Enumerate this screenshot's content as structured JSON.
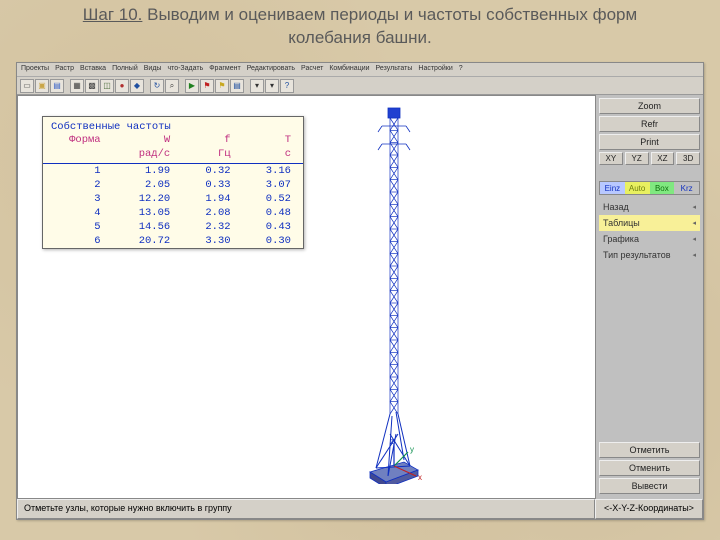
{
  "heading": {
    "step": "Шаг 10.",
    "text": " Выводим и оцениваем периоды и частоты собственных форм колебания башни."
  },
  "menubar": [
    "Проекты",
    "Растр",
    "Вставка",
    "Полный",
    "Виды",
    "что-Задать",
    "Фрагмент",
    "Редактировать",
    "Расчет",
    "Комбинации",
    "Результаты",
    "Настройки",
    "?"
  ],
  "toolbar_icons": [
    {
      "name": "new-icon",
      "glyph": "▭",
      "color": "#555"
    },
    {
      "name": "open-icon",
      "glyph": "▣",
      "color": "#caa648"
    },
    {
      "name": "save-icon",
      "glyph": "▤",
      "color": "#3a64c8"
    },
    {
      "name": "sep"
    },
    {
      "name": "grid-icon",
      "glyph": "▦",
      "color": "#444"
    },
    {
      "name": "mesh-icon",
      "glyph": "▩",
      "color": "#444"
    },
    {
      "name": "view3d-icon",
      "glyph": "◫",
      "color": "#507040"
    },
    {
      "name": "select-node-icon",
      "glyph": "●",
      "color": "#b03030"
    },
    {
      "name": "select-elem-icon",
      "glyph": "◆",
      "color": "#2050a0"
    },
    {
      "name": "sep"
    },
    {
      "name": "refresh-icon",
      "glyph": "↻",
      "color": "#2050a0"
    },
    {
      "name": "zoom-icon",
      "glyph": "⌕",
      "color": "#333"
    },
    {
      "name": "sep"
    },
    {
      "name": "run-icon",
      "glyph": "▶",
      "color": "#208020"
    },
    {
      "name": "flag-red-icon",
      "glyph": "⚑",
      "color": "#c02020"
    },
    {
      "name": "flag-yellow-icon",
      "glyph": "⚑",
      "color": "#c8a820"
    },
    {
      "name": "results-icon",
      "glyph": "▤",
      "color": "#2050a0"
    },
    {
      "name": "sep"
    },
    {
      "name": "dropdown1",
      "glyph": "▾",
      "color": "#333"
    },
    {
      "name": "dropdown2",
      "glyph": "▾",
      "color": "#333"
    },
    {
      "name": "help-icon",
      "glyph": "?",
      "color": "#2050a0"
    }
  ],
  "side": {
    "zoom": "Zoom",
    "refr": "Refr",
    "print": "Print",
    "views": [
      "XY",
      "YZ",
      "XZ",
      "3D"
    ],
    "colorband": [
      {
        "label": "Einz",
        "bg": "#b8c8ff",
        "fg": "#1030c0"
      },
      {
        "label": "Auto",
        "bg": "#e8f060",
        "fg": "#708010"
      },
      {
        "label": "Box",
        "bg": "#80e880",
        "fg": "#107010"
      },
      {
        "label": "Krz",
        "bg": "#c0c0c0",
        "fg": "#1030c0"
      }
    ],
    "menu": [
      {
        "label": "Назад",
        "sel": false
      },
      {
        "label": "Таблицы",
        "sel": true
      },
      {
        "label": "Графика",
        "sel": false
      },
      {
        "label": "Тип результатов",
        "sel": false
      }
    ],
    "bottom": [
      "Отметить",
      "Отменить",
      "Вывести"
    ]
  },
  "status": {
    "left": "Отметьте узлы, которые нужно включить в группу",
    "right": "<-X-Y-Z-Координаты>"
  },
  "freq_table": {
    "title": "Собственные частоты",
    "headers": [
      "Форма",
      "W",
      "f",
      "T"
    ],
    "units": [
      "",
      "рад/с",
      "Гц",
      "с"
    ],
    "rows": [
      [
        "1",
        "1.99",
        "0.32",
        "3.16"
      ],
      [
        "2",
        "2.05",
        "0.33",
        "3.07"
      ],
      [
        "3",
        "12.20",
        "1.94",
        "0.52"
      ],
      [
        "4",
        "13.05",
        "2.08",
        "0.48"
      ],
      [
        "5",
        "14.56",
        "2.32",
        "0.43"
      ],
      [
        "6",
        "20.72",
        "3.30",
        "0.30"
      ]
    ],
    "title_color": "#1030c0",
    "header_color": "#c03080",
    "value_color": "#1030c0",
    "bg": "#fffce8"
  },
  "tower": {
    "colors": {
      "line": "#1030c0",
      "fill": "#2040d0",
      "base": "#5060b0",
      "axis_x": "#c02020",
      "axis_y": "#109050",
      "axis_z": "#1030c0"
    }
  }
}
